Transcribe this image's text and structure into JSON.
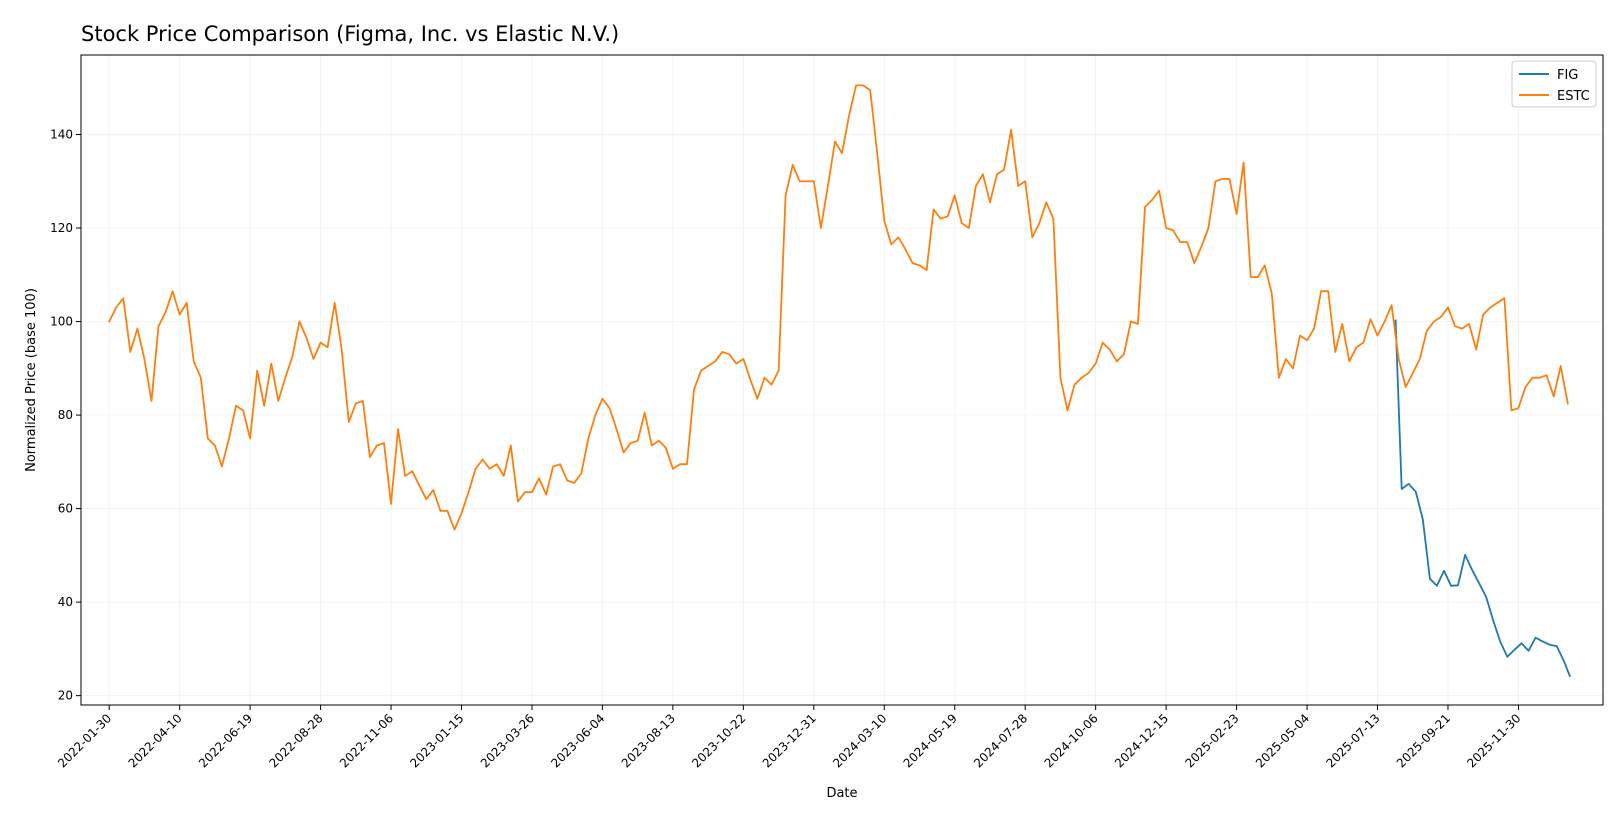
{
  "chart_data": {
    "type": "line",
    "title": "Stock Price Comparison (Figma, Inc. vs Elastic N.V.)",
    "xlabel": "Date",
    "ylabel": "Normalized Price (base 100)",
    "ylim": [
      18,
      157
    ],
    "xlim": [
      "2022-01-02",
      "2026-02-22"
    ],
    "grid": true,
    "legend_position": "top-right",
    "x_ticks": [
      "2022-01-30",
      "2022-04-10",
      "2022-06-19",
      "2022-08-28",
      "2022-11-06",
      "2023-01-15",
      "2023-03-26",
      "2023-06-04",
      "2023-08-13",
      "2023-10-22",
      "2023-12-31",
      "2024-03-10",
      "2024-05-19",
      "2024-07-28",
      "2024-10-06",
      "2024-12-15",
      "2025-02-23",
      "2025-05-04",
      "2025-07-13",
      "2025-09-21",
      "2025-11-30"
    ],
    "y_ticks": [
      20,
      40,
      60,
      80,
      100,
      120,
      140
    ],
    "series": [
      {
        "name": "FIG",
        "color": "#1f77b4",
        "x": [
          "2025-07-31",
          "2025-08-06",
          "2025-08-13",
          "2025-08-20",
          "2025-08-27",
          "2025-09-03",
          "2025-09-10",
          "2025-09-17",
          "2025-09-24",
          "2025-10-01",
          "2025-10-08",
          "2025-10-15",
          "2025-10-22",
          "2025-10-29",
          "2025-11-05",
          "2025-11-12",
          "2025-11-19",
          "2025-11-26",
          "2025-12-03",
          "2025-12-10",
          "2025-12-17",
          "2025-12-24",
          "2025-12-31",
          "2026-01-07",
          "2026-01-14",
          "2026-01-20"
        ],
        "y": [
          100.2,
          64.2,
          65.3,
          63.6,
          57.7,
          45.0,
          43.5,
          46.7,
          43.5,
          43.6,
          50.1,
          46.9,
          44.0,
          41.1,
          36.0,
          31.5,
          28.3,
          29.8,
          31.2,
          29.6,
          32.4,
          31.6,
          30.9,
          30.6,
          27.5,
          24.2
        ]
      },
      {
        "name": "ESTC",
        "color": "#ff7f0e",
        "x": [
          "2022-01-30",
          "2022-02-06",
          "2022-02-13",
          "2022-02-20",
          "2022-02-27",
          "2022-03-06",
          "2022-03-13",
          "2022-03-20",
          "2022-03-27",
          "2022-04-03",
          "2022-04-10",
          "2022-04-17",
          "2022-04-24",
          "2022-05-01",
          "2022-05-08",
          "2022-05-15",
          "2022-05-22",
          "2022-05-29",
          "2022-06-05",
          "2022-06-12",
          "2022-06-19",
          "2022-06-26",
          "2022-07-03",
          "2022-07-10",
          "2022-07-17",
          "2022-07-24",
          "2022-07-31",
          "2022-08-07",
          "2022-08-14",
          "2022-08-21",
          "2022-08-28",
          "2022-09-04",
          "2022-09-11",
          "2022-09-18",
          "2022-09-25",
          "2022-10-02",
          "2022-10-09",
          "2022-10-16",
          "2022-10-23",
          "2022-10-30",
          "2022-11-06",
          "2022-11-13",
          "2022-11-20",
          "2022-11-27",
          "2022-12-04",
          "2022-12-11",
          "2022-12-18",
          "2022-12-25",
          "2023-01-01",
          "2023-01-08",
          "2023-01-15",
          "2023-01-22",
          "2023-01-29",
          "2023-02-05",
          "2023-02-12",
          "2023-02-19",
          "2023-02-26",
          "2023-03-05",
          "2023-03-12",
          "2023-03-19",
          "2023-03-26",
          "2023-04-02",
          "2023-04-09",
          "2023-04-16",
          "2023-04-23",
          "2023-04-30",
          "2023-05-07",
          "2023-05-14",
          "2023-05-21",
          "2023-05-28",
          "2023-06-04",
          "2023-06-11",
          "2023-06-18",
          "2023-06-25",
          "2023-07-02",
          "2023-07-09",
          "2023-07-16",
          "2023-07-23",
          "2023-07-30",
          "2023-08-06",
          "2023-08-13",
          "2023-08-20",
          "2023-08-27",
          "2023-09-03",
          "2023-09-10",
          "2023-09-17",
          "2023-09-24",
          "2023-10-01",
          "2023-10-08",
          "2023-10-15",
          "2023-10-22",
          "2023-10-29",
          "2023-11-05",
          "2023-11-12",
          "2023-11-19",
          "2023-11-26",
          "2023-12-03",
          "2023-12-10",
          "2023-12-17",
          "2023-12-24",
          "2023-12-31",
          "2024-01-07",
          "2024-01-14",
          "2024-01-21",
          "2024-01-28",
          "2024-02-04",
          "2024-02-11",
          "2024-02-18",
          "2024-02-25",
          "2024-03-03",
          "2024-03-10",
          "2024-03-17",
          "2024-03-24",
          "2024-03-31",
          "2024-04-07",
          "2024-04-14",
          "2024-04-21",
          "2024-04-28",
          "2024-05-05",
          "2024-05-12",
          "2024-05-19",
          "2024-05-26",
          "2024-06-02",
          "2024-06-09",
          "2024-06-16",
          "2024-06-23",
          "2024-06-30",
          "2024-07-07",
          "2024-07-14",
          "2024-07-21",
          "2024-07-28",
          "2024-08-04",
          "2024-08-11",
          "2024-08-18",
          "2024-08-25",
          "2024-09-01",
          "2024-09-08",
          "2024-09-15",
          "2024-09-22",
          "2024-09-29",
          "2024-10-06",
          "2024-10-13",
          "2024-10-20",
          "2024-10-27",
          "2024-11-03",
          "2024-11-10",
          "2024-11-17",
          "2024-11-24",
          "2024-12-01",
          "2024-12-08",
          "2024-12-15",
          "2024-12-22",
          "2024-12-29",
          "2025-01-05",
          "2025-01-12",
          "2025-01-19",
          "2025-01-26",
          "2025-02-02",
          "2025-02-09",
          "2025-02-16",
          "2025-02-23",
          "2025-03-02",
          "2025-03-09",
          "2025-03-16",
          "2025-03-23",
          "2025-03-30",
          "2025-04-06",
          "2025-04-13",
          "2025-04-20",
          "2025-04-27",
          "2025-05-04",
          "2025-05-11",
          "2025-05-18",
          "2025-05-25",
          "2025-06-01",
          "2025-06-08",
          "2025-06-15",
          "2025-06-22",
          "2025-06-29",
          "2025-07-06",
          "2025-07-13",
          "2025-07-20",
          "2025-07-27",
          "2025-08-03",
          "2025-08-10",
          "2025-08-17",
          "2025-08-24",
          "2025-08-31",
          "2025-09-07",
          "2025-09-14",
          "2025-09-21",
          "2025-09-28",
          "2025-10-05",
          "2025-10-12",
          "2025-10-19",
          "2025-10-26",
          "2025-11-02",
          "2025-11-09",
          "2025-11-16",
          "2025-11-23",
          "2025-11-30",
          "2025-12-07",
          "2025-12-14",
          "2025-12-21",
          "2025-12-28",
          "2026-01-04",
          "2026-01-11",
          "2026-01-18"
        ],
        "y": [
          100.0,
          103.0,
          105.0,
          93.5,
          98.5,
          92.0,
          83.0,
          99.0,
          102.0,
          106.5,
          101.5,
          104.0,
          91.5,
          88.0,
          75.0,
          73.5,
          69.0,
          75.0,
          82.0,
          81.0,
          75.0,
          89.5,
          82.0,
          91.0,
          83.0,
          88.0,
          92.5,
          100.0,
          96.5,
          92.0,
          95.5,
          94.5,
          104.0,
          94.0,
          78.5,
          82.5,
          83.0,
          71.0,
          73.5,
          74.0,
          61.0,
          77.0,
          67.0,
          68.0,
          65.0,
          62.0,
          64.0,
          59.5,
          59.5,
          55.5,
          59.0,
          63.5,
          68.5,
          70.5,
          68.5,
          69.5,
          67.0,
          73.5,
          61.5,
          63.5,
          63.5,
          66.5,
          63.0,
          69.0,
          69.5,
          66.0,
          65.5,
          67.5,
          75.0,
          80.0,
          83.5,
          81.5,
          77.0,
          72.0,
          74.0,
          74.5,
          80.5,
          73.5,
          74.5,
          73.0,
          68.5,
          69.5,
          69.5,
          85.5,
          89.5,
          90.5,
          91.5,
          93.5,
          93.0,
          91.0,
          92.0,
          87.5,
          83.5,
          88.0,
          86.5,
          89.5,
          127.0,
          133.5,
          130.0,
          130.0,
          130.0,
          120.0,
          129.0,
          138.5,
          136.0,
          144.0,
          150.5,
          150.5,
          149.5,
          136.0,
          121.5,
          116.5,
          118.0,
          115.5,
          112.5,
          112.0,
          111.0,
          124.0,
          122.0,
          122.5,
          127.0,
          121.0,
          120.0,
          129.0,
          131.5,
          125.5,
          131.5,
          132.5,
          141.0,
          129.0,
          130.0,
          118.0,
          121.0,
          125.5,
          122.0,
          88.0,
          81.0,
          86.5,
          88.0,
          89.0,
          91.0,
          95.5,
          94.0,
          91.5,
          93.0,
          100.0,
          99.5,
          124.5,
          126.0,
          128.0,
          120.0,
          119.5,
          117.0,
          117.0,
          112.5,
          116.0,
          120.0,
          130.0,
          130.5,
          130.5,
          123.0,
          134.0,
          109.5,
          109.5,
          112.0,
          106.0,
          88.0,
          92.0,
          90.0,
          97.0,
          96.0,
          98.5,
          106.5,
          106.5,
          93.5,
          99.5,
          91.5,
          94.5,
          95.5,
          100.5,
          97.0,
          100.0,
          103.5,
          92.0,
          86.0,
          89.0,
          92.0,
          98.0,
          100.0,
          101.0,
          103.0,
          99.0,
          98.5,
          99.5,
          94.0,
          101.5,
          103.0,
          104.0,
          105.0,
          81.0,
          81.5,
          86.0,
          88.0,
          88.0,
          88.5,
          84.0,
          90.5,
          82.5
        ]
      }
    ]
  }
}
